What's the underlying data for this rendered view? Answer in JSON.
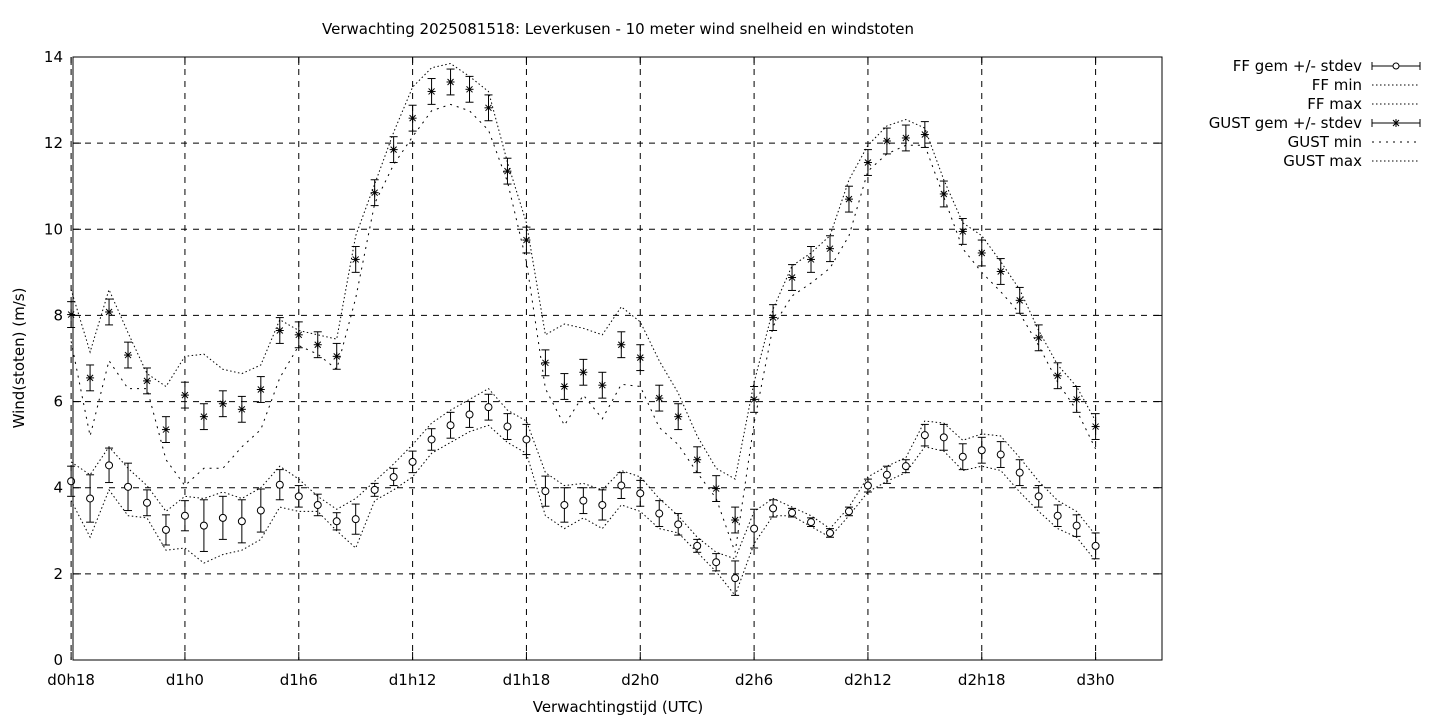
{
  "chart_data": {
    "type": "line",
    "title": "Verwachting 2025081518: Leverkusen - 10 meter wind snelheid en windstoten",
    "xlabel": "Verwachtingstijd (UTC)",
    "ylabel": "Wind(stoten) (m/s)",
    "xlim": [
      18,
      78
    ],
    "ylim": [
      0,
      14
    ],
    "grid": true,
    "legend_position": "outside-top-right",
    "x_ticks": [
      {
        "x": 18,
        "label": "d0h18"
      },
      {
        "x": 24,
        "label": "d1h0"
      },
      {
        "x": 30,
        "label": "d1h6"
      },
      {
        "x": 36,
        "label": "d1h12"
      },
      {
        "x": 42,
        "label": "d1h18"
      },
      {
        "x": 48,
        "label": "d2h0"
      },
      {
        "x": 54,
        "label": "d2h6"
      },
      {
        "x": 60,
        "label": "d2h12"
      },
      {
        "x": 66,
        "label": "d2h18"
      },
      {
        "x": 72,
        "label": "d3h0"
      }
    ],
    "y_ticks": [
      0,
      2,
      4,
      6,
      8,
      10,
      12,
      14
    ],
    "x": [
      18,
      19,
      20,
      21,
      22,
      23,
      24,
      25,
      26,
      27,
      28,
      29,
      30,
      31,
      32,
      33,
      34,
      35,
      36,
      37,
      38,
      39,
      40,
      41,
      42,
      43,
      44,
      45,
      46,
      47,
      48,
      49,
      50,
      51,
      52,
      53,
      54,
      55,
      56,
      57,
      58,
      59,
      60,
      61,
      62,
      63,
      64,
      65,
      66,
      67,
      68,
      69,
      70,
      71,
      72
    ],
    "series": [
      {
        "name": "FF gem +/- stdev",
        "marker": "open-circle",
        "values": [
          4.15,
          3.75,
          4.52,
          4.02,
          3.65,
          3.02,
          3.35,
          3.12,
          3.3,
          3.22,
          3.47,
          4.07,
          3.8,
          3.6,
          3.22,
          3.27,
          3.95,
          4.25,
          4.6,
          5.12,
          5.45,
          5.7,
          5.87,
          5.42,
          5.12,
          3.92,
          3.6,
          3.7,
          3.6,
          4.05,
          3.87,
          3.4,
          3.15,
          2.65,
          2.27,
          1.9,
          3.05,
          3.52,
          3.42,
          3.2,
          2.95,
          3.45,
          4.05,
          4.3,
          4.5,
          5.22,
          5.17,
          4.72,
          4.87,
          4.77,
          4.35,
          3.8,
          3.35,
          3.12,
          2.65
        ],
        "stdev": [
          0.35,
          0.55,
          0.4,
          0.55,
          0.3,
          0.35,
          0.35,
          0.6,
          0.5,
          0.5,
          0.5,
          0.35,
          0.25,
          0.25,
          0.2,
          0.35,
          0.15,
          0.2,
          0.25,
          0.25,
          0.3,
          0.3,
          0.3,
          0.3,
          0.35,
          0.35,
          0.4,
          0.3,
          0.35,
          0.3,
          0.3,
          0.3,
          0.25,
          0.15,
          0.2,
          0.4,
          0.45,
          0.2,
          0.1,
          0.1,
          0.1,
          0.1,
          0.15,
          0.2,
          0.15,
          0.25,
          0.3,
          0.3,
          0.3,
          0.3,
          0.3,
          0.25,
          0.25,
          0.25,
          0.3
        ]
      },
      {
        "name": "FF min",
        "style": "dotted",
        "values": [
          3.7,
          2.85,
          3.95,
          3.35,
          3.3,
          2.55,
          2.6,
          2.25,
          2.45,
          2.55,
          2.8,
          3.55,
          3.45,
          3.45,
          3.0,
          2.6,
          3.7,
          3.95,
          4.25,
          4.8,
          5.05,
          5.3,
          5.45,
          5.05,
          4.8,
          3.35,
          3.05,
          3.3,
          3.05,
          3.6,
          3.45,
          3.05,
          2.95,
          2.5,
          2.05,
          1.5,
          2.7,
          3.35,
          3.35,
          3.1,
          2.85,
          3.35,
          3.9,
          4.15,
          4.35,
          4.95,
          4.85,
          4.4,
          4.5,
          4.4,
          3.9,
          3.45,
          3.05,
          2.85,
          2.3
        ]
      },
      {
        "name": "FF max",
        "style": "dotted",
        "values": [
          4.6,
          4.3,
          4.95,
          4.45,
          4.05,
          3.45,
          3.8,
          3.75,
          3.9,
          3.75,
          4.0,
          4.5,
          4.2,
          3.8,
          3.5,
          3.75,
          4.15,
          4.55,
          5.0,
          5.5,
          5.8,
          6.05,
          6.3,
          5.8,
          5.55,
          4.35,
          4.05,
          4.1,
          3.95,
          4.4,
          4.25,
          3.75,
          3.35,
          2.85,
          2.5,
          2.35,
          3.45,
          3.75,
          3.55,
          3.35,
          3.05,
          3.55,
          4.25,
          4.5,
          4.7,
          5.55,
          5.5,
          5.1,
          5.25,
          5.2,
          4.7,
          4.15,
          3.7,
          3.45,
          2.9
        ]
      },
      {
        "name": "GUST gem +/- stdev",
        "marker": "star",
        "values": [
          8.02,
          6.55,
          8.08,
          7.08,
          6.48,
          5.35,
          6.15,
          5.65,
          5.95,
          5.82,
          6.28,
          7.65,
          7.55,
          7.32,
          7.05,
          9.3,
          10.85,
          11.85,
          12.58,
          13.2,
          13.42,
          13.25,
          12.82,
          11.35,
          9.75,
          6.9,
          6.35,
          6.68,
          6.38,
          7.32,
          7.02,
          6.08,
          5.65,
          4.65,
          3.98,
          3.25,
          6.05,
          7.95,
          8.88,
          9.3,
          9.55,
          10.7,
          11.55,
          12.05,
          12.12,
          12.2,
          10.82,
          9.95,
          9.45,
          9.02,
          8.35,
          7.48,
          6.6,
          6.05,
          5.42
        ]
      },
      {
        "name": "GUST min",
        "style": "dotted-coarse",
        "values": [
          7.4,
          5.2,
          6.95,
          6.3,
          6.3,
          4.65,
          4.05,
          4.45,
          4.45,
          4.95,
          5.35,
          6.55,
          7.3,
          7.1,
          6.75,
          8.4,
          10.6,
          11.5,
          12.15,
          12.75,
          12.9,
          12.75,
          12.3,
          11.1,
          9.25,
          6.3,
          5.45,
          6.15,
          5.6,
          6.4,
          6.35,
          5.4,
          5.0,
          4.35,
          3.75,
          2.5,
          5.5,
          7.75,
          8.45,
          8.75,
          9.1,
          9.85,
          11.35,
          11.75,
          11.95,
          11.95,
          10.75,
          9.55,
          9.0,
          8.55,
          8.05,
          7.3,
          6.45,
          5.8,
          4.9
        ]
      },
      {
        "name": "GUST max",
        "style": "dotted",
        "values": [
          8.6,
          7.15,
          8.6,
          7.6,
          6.65,
          6.35,
          7.05,
          7.1,
          6.75,
          6.65,
          6.85,
          7.9,
          7.65,
          7.55,
          7.45,
          9.85,
          11.05,
          12.25,
          13.3,
          13.75,
          13.85,
          13.55,
          13.2,
          11.55,
          10.15,
          7.55,
          7.8,
          7.7,
          7.55,
          8.2,
          7.85,
          6.95,
          6.2,
          5.2,
          4.45,
          4.2,
          6.45,
          8.15,
          9.15,
          9.45,
          9.85,
          11.15,
          11.95,
          12.4,
          12.55,
          12.35,
          11.15,
          10.15,
          9.85,
          9.25,
          8.6,
          7.65,
          6.85,
          6.35,
          5.55
        ]
      }
    ]
  }
}
